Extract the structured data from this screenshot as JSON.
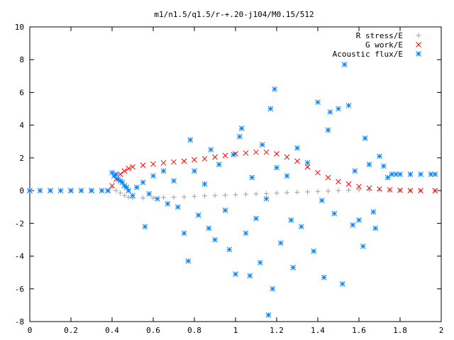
{
  "chart_data": {
    "type": "scatter",
    "title": "m1/n1.5/q1.5/r-+.20-j104/M0.15/512",
    "xlim": [
      0,
      2
    ],
    "ylim": [
      -8,
      10
    ],
    "x_ticks": [
      "0",
      "0.2",
      "0.4",
      "0.6",
      "0.8",
      "1",
      "1.2",
      "1.4",
      "1.6",
      "1.8",
      "2"
    ],
    "y_ticks": [
      "-8",
      "-6",
      "-4",
      "-2",
      "0",
      "2",
      "4",
      "6",
      "8",
      "10"
    ],
    "grid": false,
    "legend_position": "top-right",
    "series": [
      {
        "name": "R stress/E",
        "marker": "plus",
        "color": "#a0a0a0",
        "points": [
          [
            0.4,
            0.2
          ],
          [
            0.42,
            0.0
          ],
          [
            0.44,
            -0.15
          ],
          [
            0.46,
            -0.3
          ],
          [
            0.48,
            -0.4
          ],
          [
            0.5,
            -0.45
          ],
          [
            0.55,
            -0.45
          ],
          [
            0.6,
            -0.45
          ],
          [
            0.65,
            -0.42
          ],
          [
            0.7,
            -0.4
          ],
          [
            0.75,
            -0.38
          ],
          [
            0.8,
            -0.35
          ],
          [
            0.85,
            -0.32
          ],
          [
            0.9,
            -0.3
          ],
          [
            0.95,
            -0.28
          ],
          [
            1.0,
            -0.25
          ],
          [
            1.05,
            -0.22
          ],
          [
            1.1,
            -0.2
          ],
          [
            1.15,
            -0.18
          ],
          [
            1.2,
            -0.15
          ],
          [
            1.25,
            -0.12
          ],
          [
            1.3,
            -0.1
          ],
          [
            1.35,
            -0.08
          ],
          [
            1.4,
            -0.05
          ],
          [
            1.45,
            -0.03
          ],
          [
            1.5,
            0.0
          ],
          [
            1.55,
            0.03
          ],
          [
            1.6,
            0.05
          ],
          [
            1.65,
            0.05
          ],
          [
            1.7,
            0.03
          ],
          [
            1.75,
            0.02
          ],
          [
            1.8,
            0.01
          ],
          [
            1.85,
            0.0
          ],
          [
            1.9,
            0.0
          ],
          [
            1.97,
            0.0
          ]
        ]
      },
      {
        "name": "G work/E",
        "marker": "cross",
        "color": "#ff0000",
        "points": [
          [
            0.0,
            0.0
          ],
          [
            0.1,
            0.0
          ],
          [
            0.2,
            0.0
          ],
          [
            0.3,
            0.0
          ],
          [
            0.38,
            0.0
          ],
          [
            0.4,
            0.3
          ],
          [
            0.42,
            0.7
          ],
          [
            0.44,
            1.0
          ],
          [
            0.46,
            1.2
          ],
          [
            0.48,
            1.35
          ],
          [
            0.5,
            1.45
          ],
          [
            0.55,
            1.55
          ],
          [
            0.6,
            1.62
          ],
          [
            0.65,
            1.7
          ],
          [
            0.7,
            1.75
          ],
          [
            0.75,
            1.8
          ],
          [
            0.8,
            1.88
          ],
          [
            0.85,
            1.95
          ],
          [
            0.9,
            2.05
          ],
          [
            0.95,
            2.15
          ],
          [
            1.0,
            2.25
          ],
          [
            1.05,
            2.3
          ],
          [
            1.1,
            2.35
          ],
          [
            1.15,
            2.35
          ],
          [
            1.2,
            2.25
          ],
          [
            1.25,
            2.05
          ],
          [
            1.3,
            1.8
          ],
          [
            1.35,
            1.45
          ],
          [
            1.4,
            1.1
          ],
          [
            1.45,
            0.8
          ],
          [
            1.5,
            0.55
          ],
          [
            1.55,
            0.4
          ],
          [
            1.6,
            0.25
          ],
          [
            1.65,
            0.15
          ],
          [
            1.7,
            0.1
          ],
          [
            1.75,
            0.05
          ],
          [
            1.8,
            0.02
          ],
          [
            1.85,
            0.0
          ],
          [
            1.9,
            0.0
          ],
          [
            1.97,
            0.0
          ]
        ]
      },
      {
        "name": "Acoustic flux/E",
        "marker": "star",
        "color": "#0080ff",
        "points": [
          [
            0.4,
            1.1
          ],
          [
            0.41,
            0.9
          ],
          [
            0.42,
            1.0
          ],
          [
            0.43,
            0.7
          ],
          [
            0.44,
            0.6
          ],
          [
            0.45,
            0.5
          ],
          [
            0.46,
            0.3
          ],
          [
            0.47,
            0.2
          ],
          [
            0.48,
            0.0
          ],
          [
            0.5,
            -0.3
          ],
          [
            0.52,
            0.2
          ],
          [
            0.55,
            0.5
          ],
          [
            0.58,
            -0.2
          ],
          [
            0.6,
            0.9
          ],
          [
            0.62,
            -0.5
          ],
          [
            0.56,
            -2.2
          ],
          [
            0.65,
            1.2
          ],
          [
            0.67,
            -0.8
          ],
          [
            0.7,
            0.6
          ],
          [
            0.72,
            -1.0
          ],
          [
            0.75,
            -2.6
          ],
          [
            0.77,
            -4.3
          ],
          [
            0.78,
            3.1
          ],
          [
            0.8,
            1.2
          ],
          [
            0.82,
            -1.5
          ],
          [
            0.85,
            0.4
          ],
          [
            0.87,
            -2.3
          ],
          [
            0.88,
            2.5
          ],
          [
            0.9,
            -3.0
          ],
          [
            0.92,
            1.6
          ],
          [
            0.95,
            -1.2
          ],
          [
            0.97,
            -3.6
          ],
          [
            0.99,
            2.2
          ],
          [
            1.0,
            -5.1
          ],
          [
            1.02,
            3.3
          ],
          [
            1.03,
            3.8
          ],
          [
            1.05,
            -2.6
          ],
          [
            1.07,
            -5.2
          ],
          [
            1.08,
            0.8
          ],
          [
            1.1,
            -1.7
          ],
          [
            1.12,
            -4.4
          ],
          [
            1.13,
            2.8
          ],
          [
            1.15,
            -0.5
          ],
          [
            1.16,
            -7.6
          ],
          [
            1.17,
            5.0
          ],
          [
            1.18,
            -6.0
          ],
          [
            1.19,
            6.2
          ],
          [
            1.2,
            1.4
          ],
          [
            1.22,
            -3.2
          ],
          [
            1.25,
            0.9
          ],
          [
            1.27,
            -1.8
          ],
          [
            1.28,
            -4.7
          ],
          [
            1.3,
            2.6
          ],
          [
            1.32,
            -2.2
          ],
          [
            1.35,
            1.7
          ],
          [
            1.38,
            -3.7
          ],
          [
            1.4,
            5.4
          ],
          [
            1.42,
            -0.6
          ],
          [
            1.43,
            -5.3
          ],
          [
            1.45,
            3.7
          ],
          [
            1.46,
            4.8
          ],
          [
            1.48,
            -1.4
          ],
          [
            1.5,
            5.0
          ],
          [
            1.52,
            -5.7
          ],
          [
            1.53,
            7.7
          ],
          [
            1.55,
            5.2
          ],
          [
            1.57,
            -2.1
          ],
          [
            1.58,
            1.2
          ],
          [
            1.6,
            -1.8
          ],
          [
            1.62,
            -3.4
          ],
          [
            1.63,
            3.2
          ],
          [
            1.65,
            1.6
          ],
          [
            1.67,
            -1.3
          ],
          [
            1.68,
            -2.3
          ],
          [
            1.7,
            2.1
          ],
          [
            1.72,
            1.5
          ],
          [
            1.74,
            0.8
          ],
          [
            1.76,
            1.0
          ],
          [
            1.78,
            1.0
          ],
          [
            1.8,
            1.0
          ],
          [
            1.85,
            1.0
          ],
          [
            1.9,
            1.0
          ],
          [
            1.95,
            1.0
          ],
          [
            1.97,
            1.0
          ],
          [
            0.0,
            0.0
          ],
          [
            0.05,
            0.0
          ],
          [
            0.1,
            0.0
          ],
          [
            0.15,
            0.0
          ],
          [
            0.2,
            0.0
          ],
          [
            0.25,
            0.0
          ],
          [
            0.3,
            0.0
          ],
          [
            0.35,
            0.0
          ],
          [
            0.38,
            0.0
          ]
        ]
      }
    ]
  }
}
